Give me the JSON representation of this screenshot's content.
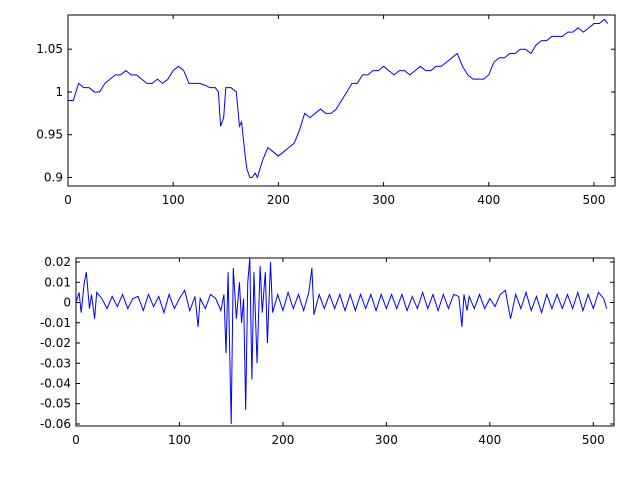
{
  "chart_data": [
    {
      "type": "line",
      "xlim": [
        0,
        520
      ],
      "ylim": [
        0.89,
        1.09
      ],
      "xticks": [
        0,
        100,
        200,
        300,
        400,
        500
      ],
      "xtick_labels": [
        "0",
        "100",
        "200",
        "300",
        "400",
        "500"
      ],
      "yticks": [
        0.9,
        0.95,
        1.0,
        1.05
      ],
      "ytick_labels": [
        "0.9",
        "0.95",
        "1",
        "1.05"
      ],
      "grid": false,
      "series": [
        {
          "color": "#0000ff",
          "x": [
            0,
            5,
            10,
            15,
            20,
            25,
            30,
            35,
            40,
            45,
            50,
            55,
            60,
            65,
            70,
            75,
            80,
            85,
            90,
            95,
            100,
            105,
            110,
            115,
            120,
            125,
            130,
            135,
            140,
            143,
            145,
            148,
            150,
            155,
            160,
            163,
            165,
            168,
            170,
            173,
            175,
            178,
            180,
            185,
            190,
            195,
            200,
            205,
            210,
            215,
            220,
            225,
            230,
            235,
            240,
            245,
            250,
            255,
            260,
            265,
            270,
            275,
            280,
            285,
            290,
            295,
            300,
            305,
            310,
            315,
            320,
            325,
            330,
            335,
            340,
            345,
            350,
            355,
            360,
            365,
            370,
            375,
            380,
            385,
            390,
            395,
            400,
            405,
            410,
            415,
            420,
            425,
            430,
            435,
            440,
            445,
            450,
            455,
            460,
            465,
            470,
            475,
            480,
            485,
            490,
            495,
            500,
            505,
            510,
            513
          ],
          "values": [
            0.99,
            0.99,
            1.01,
            1.005,
            1.005,
            1.0,
            1.0,
            1.01,
            1.015,
            1.02,
            1.02,
            1.025,
            1.02,
            1.02,
            1.015,
            1.01,
            1.01,
            1.015,
            1.01,
            1.015,
            1.025,
            1.03,
            1.025,
            1.01,
            1.01,
            1.01,
            1.008,
            1.005,
            1.005,
            1.0,
            0.96,
            0.97,
            1.005,
            1.005,
            1.0,
            0.96,
            0.965,
            0.93,
            0.91,
            0.9,
            0.9,
            0.905,
            0.9,
            0.92,
            0.935,
            0.93,
            0.925,
            0.93,
            0.935,
            0.94,
            0.955,
            0.975,
            0.97,
            0.975,
            0.98,
            0.975,
            0.975,
            0.98,
            0.99,
            1.0,
            1.01,
            1.01,
            1.02,
            1.02,
            1.025,
            1.025,
            1.03,
            1.025,
            1.02,
            1.025,
            1.025,
            1.02,
            1.025,
            1.03,
            1.025,
            1.025,
            1.03,
            1.03,
            1.035,
            1.04,
            1.045,
            1.03,
            1.02,
            1.015,
            1.015,
            1.015,
            1.02,
            1.035,
            1.04,
            1.04,
            1.045,
            1.045,
            1.05,
            1.05,
            1.045,
            1.055,
            1.06,
            1.06,
            1.065,
            1.065,
            1.065,
            1.07,
            1.07,
            1.075,
            1.07,
            1.075,
            1.08,
            1.08,
            1.085,
            1.08
          ]
        }
      ]
    },
    {
      "type": "line",
      "xlim": [
        0,
        520
      ],
      "ylim": [
        -0.061,
        0.022
      ],
      "xticks": [
        0,
        100,
        200,
        300,
        400,
        500
      ],
      "xtick_labels": [
        "0",
        "100",
        "200",
        "300",
        "400",
        "500"
      ],
      "yticks": [
        0.02,
        0.01,
        0,
        -0.01,
        -0.02,
        -0.03,
        -0.04,
        -0.05,
        -0.06
      ],
      "ytick_labels": [
        "0.02",
        "0.01",
        "0",
        "-0.01",
        "-0.02",
        "-0.03",
        "-0.04",
        "-0.05",
        "-0.06"
      ],
      "grid": false,
      "series": [
        {
          "color": "#0000ff",
          "x": [
            0,
            3,
            5,
            8,
            10,
            13,
            15,
            18,
            20,
            25,
            30,
            35,
            40,
            45,
            50,
            55,
            60,
            65,
            70,
            75,
            80,
            85,
            90,
            95,
            100,
            105,
            110,
            115,
            118,
            120,
            125,
            130,
            135,
            140,
            143,
            145,
            147,
            150,
            152,
            155,
            158,
            160,
            162,
            164,
            166,
            168,
            170,
            172,
            175,
            178,
            180,
            183,
            185,
            188,
            190,
            195,
            200,
            205,
            210,
            215,
            220,
            225,
            228,
            230,
            235,
            240,
            245,
            250,
            255,
            260,
            265,
            270,
            275,
            280,
            285,
            290,
            295,
            300,
            305,
            310,
            315,
            320,
            325,
            330,
            335,
            340,
            345,
            350,
            355,
            360,
            365,
            370,
            373,
            375,
            378,
            380,
            385,
            390,
            395,
            400,
            405,
            410,
            415,
            420,
            425,
            430,
            435,
            440,
            445,
            450,
            455,
            460,
            465,
            470,
            475,
            480,
            485,
            490,
            495,
            500,
            505,
            510,
            513
          ],
          "values": [
            0.0,
            0.005,
            -0.005,
            0.01,
            0.015,
            -0.003,
            0.004,
            -0.008,
            0.005,
            0.002,
            -0.003,
            0.003,
            -0.002,
            0.004,
            -0.003,
            0.002,
            0.003,
            -0.004,
            0.004,
            -0.002,
            0.003,
            -0.005,
            0.004,
            -0.003,
            0.002,
            0.006,
            -0.004,
            0.003,
            -0.012,
            0.002,
            -0.003,
            0.004,
            0.002,
            -0.004,
            0.004,
            -0.025,
            0.015,
            -0.06,
            0.017,
            -0.008,
            0.01,
            -0.01,
            0.002,
            -0.053,
            0.01,
            0.022,
            -0.038,
            0.015,
            -0.03,
            0.018,
            -0.005,
            0.015,
            -0.02,
            0.02,
            -0.005,
            0.004,
            -0.004,
            0.005,
            -0.003,
            0.004,
            -0.004,
            0.005,
            0.017,
            -0.006,
            0.004,
            -0.003,
            0.004,
            -0.003,
            0.004,
            -0.004,
            0.004,
            -0.004,
            0.004,
            -0.003,
            0.004,
            -0.004,
            0.004,
            -0.003,
            0.004,
            -0.003,
            0.004,
            -0.004,
            0.003,
            -0.003,
            0.005,
            -0.003,
            0.004,
            -0.004,
            0.004,
            -0.003,
            0.004,
            0.003,
            -0.012,
            0.004,
            -0.004,
            0.003,
            -0.003,
            0.004,
            -0.003,
            0.002,
            -0.002,
            0.004,
            0.006,
            -0.008,
            0.004,
            -0.003,
            0.005,
            -0.004,
            0.003,
            -0.005,
            0.004,
            -0.003,
            0.004,
            -0.003,
            0.004,
            -0.003,
            0.005,
            -0.004,
            0.004,
            -0.003,
            0.005,
            0.002,
            -0.003
          ]
        }
      ]
    }
  ]
}
